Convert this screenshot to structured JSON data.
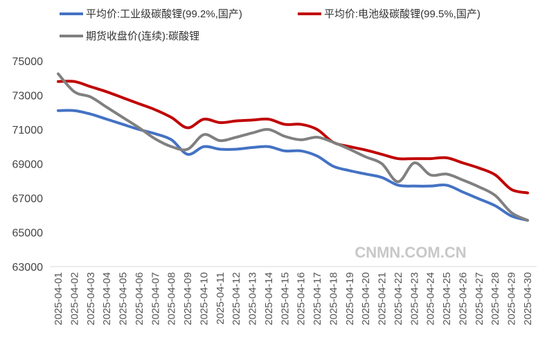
{
  "chart_data": {
    "type": "line",
    "title": "",
    "xlabel": "",
    "ylabel": "",
    "ylim": [
      63000,
      75000
    ],
    "yticks": [
      "63000",
      "65000",
      "67000",
      "69000",
      "71000",
      "73000",
      "75000"
    ],
    "grid": false,
    "legend_position": "top",
    "categories": [
      "2025-04-01",
      "2025-04-02",
      "2025-04-03",
      "2025-04-04",
      "2025-04-05",
      "2025-04-06",
      "2025-04-07",
      "2025-04-08",
      "2025-04-09",
      "2025-04-10",
      "2025-04-11",
      "2025-04-12",
      "2025-04-13",
      "2025-04-14",
      "2025-04-15",
      "2025-04-16",
      "2025-04-17",
      "2025-04-18",
      "2025-04-19",
      "2025-04-20",
      "2025-04-21",
      "2025-04-22",
      "2025-04-23",
      "2025-04-24",
      "2025-04-25",
      "2025-04-26",
      "2025-04-27",
      "2025-04-28",
      "2025-04-29",
      "2025-04-30"
    ],
    "series": [
      {
        "name": "平均价:工业级碳酸锂(99.2%,国产)",
        "color": "#4472c4",
        "values": [
          72100,
          72100,
          71900,
          71600,
          71300,
          71000,
          70750,
          70400,
          69550,
          70000,
          69850,
          69850,
          69950,
          70000,
          69750,
          69750,
          69450,
          68850,
          68600,
          68400,
          68200,
          67750,
          67700,
          67700,
          67750,
          67350,
          66950,
          66550,
          65950,
          65700
        ]
      },
      {
        "name": "平均价:电池级碳酸锂(99.5%,国产)",
        "color": "#c00000",
        "values": [
          73800,
          73800,
          73500,
          73200,
          72850,
          72500,
          72150,
          71700,
          71100,
          71600,
          71400,
          71500,
          71550,
          71600,
          71300,
          71300,
          71000,
          70250,
          70000,
          69800,
          69550,
          69300,
          69300,
          69300,
          69350,
          69050,
          68750,
          68350,
          67500,
          67300
        ]
      },
      {
        "name": "期货收盘价(连续):碳酸锂",
        "color": "#808080",
        "values": [
          74250,
          73200,
          72900,
          72300,
          71700,
          71100,
          70450,
          70000,
          69850,
          70700,
          70350,
          70550,
          70800,
          71000,
          70600,
          70400,
          70550,
          70250,
          69850,
          69400,
          69000,
          67950,
          69050,
          68350,
          68400,
          68050,
          67650,
          67150,
          66150,
          65700
        ]
      }
    ]
  },
  "watermark": "CNMN.COM.CN"
}
